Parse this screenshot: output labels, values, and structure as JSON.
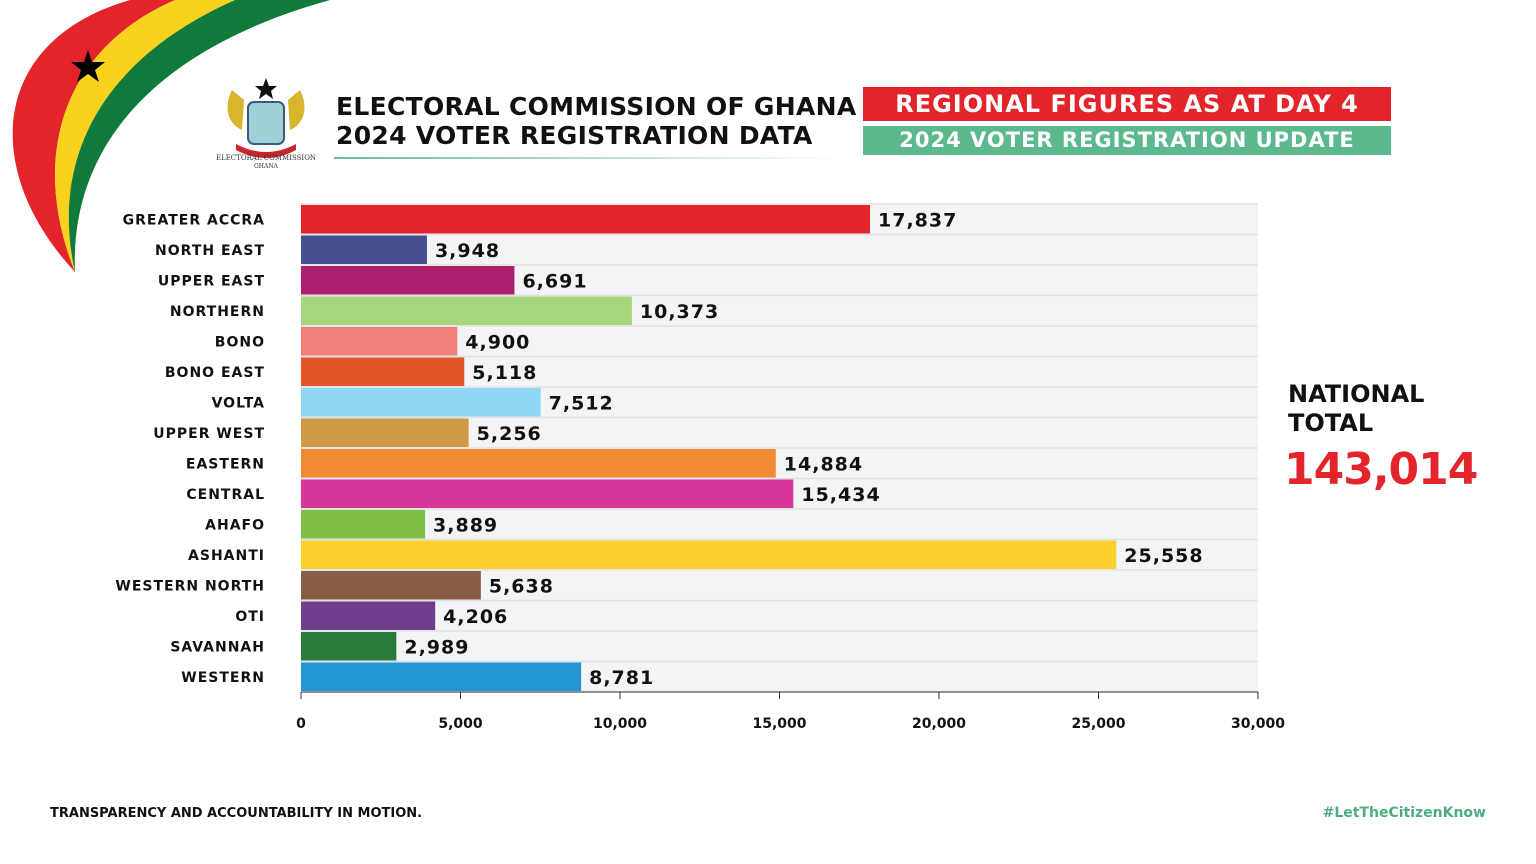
{
  "header": {
    "title_line1": "ELECTORAL COMMISSION OF GHANA",
    "title_line2": "2024 VOTER REGISTRATION DATA",
    "logo_text": "ELECTORAL COMMISSION GHANA",
    "banner_red": "REGIONAL FIGURES AS AT DAY 4",
    "banner_green": "2024 VOTER REGISTRATION UPDATE"
  },
  "national_total": {
    "label_line1": "NATIONAL",
    "label_line2": "TOTAL",
    "value": "143,014"
  },
  "footer": {
    "left": "TRANSPARENCY AND ACCOUNTABILITY IN MOTION.",
    "right": "#LetTheCitizenKnow"
  },
  "colors": {
    "red": "#e3242b",
    "green": "#5cb88d",
    "plot_bg": "#f3f4f6"
  },
  "chart_data": {
    "type": "bar",
    "orientation": "horizontal",
    "categories": [
      "GREATER ACCRA",
      "NORTH EAST",
      "UPPER EAST",
      "NORTHERN",
      "BONO",
      "BONO EAST",
      "VOLTA",
      "UPPER WEST",
      "EASTERN",
      "CENTRAL",
      "AHAFO",
      "ASHANTI",
      "WESTERN NORTH",
      "OTI",
      "SAVANNAH",
      "WESTERN"
    ],
    "values": [
      17837,
      3948,
      6691,
      10373,
      4900,
      5118,
      7512,
      5256,
      14884,
      15434,
      3889,
      25558,
      5638,
      4206,
      2989,
      8781
    ],
    "value_labels": [
      "17,837",
      "3,948",
      "6,691",
      "10,373",
      "4,900",
      "5,118",
      "7,512",
      "5,256",
      "14,884",
      "15,434",
      "3,889",
      "25,558",
      "5,638",
      "4,206",
      "2,989",
      "8,781"
    ],
    "bar_colors": [
      "#e3242b",
      "#464f8f",
      "#ad1f6f",
      "#a8d67f",
      "#f2807a",
      "#e45526",
      "#8fd6f2",
      "#d09a45",
      "#f28a34",
      "#d6389a",
      "#7fbf45",
      "#fed02f",
      "#875d46",
      "#6e3f8c",
      "#2a7a3a",
      "#2496d2"
    ],
    "xlim": [
      0,
      30000
    ],
    "x_ticks": [
      0,
      5000,
      10000,
      15000,
      20000,
      25000,
      30000
    ],
    "x_tick_labels": [
      "0",
      "5,000",
      "10,000",
      "15,000",
      "20,000",
      "25,000",
      "30,000"
    ],
    "grid": true,
    "title": "",
    "xlabel": "",
    "ylabel": ""
  }
}
